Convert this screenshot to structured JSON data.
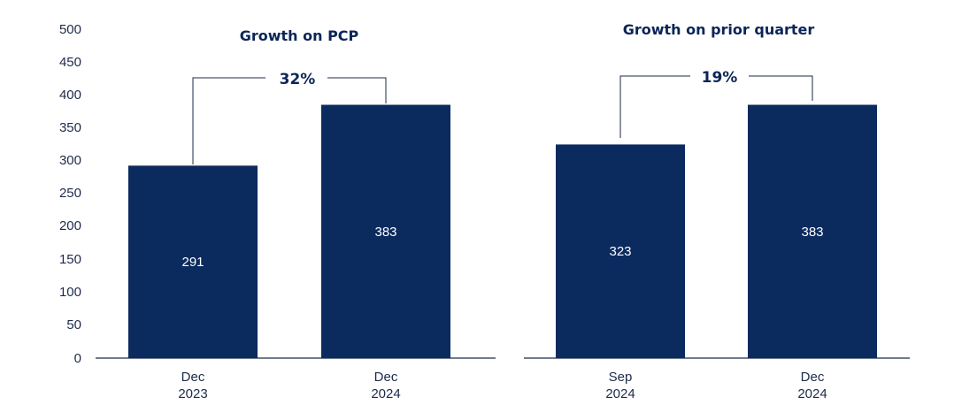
{
  "chart_data": {
    "type": "bar",
    "ylim": [
      0,
      500
    ],
    "yticks": [
      "500",
      "450",
      "400",
      "350",
      "300",
      "250",
      "200",
      "150",
      "100",
      "50",
      "0"
    ],
    "bar_color": "#0b2a5e",
    "panels": [
      {
        "title": "Growth on PCP",
        "growth_label": "32%",
        "categories": [
          {
            "line1": "Dec",
            "line2": "2023"
          },
          {
            "line1": "Dec",
            "line2": "2024"
          }
        ],
        "values": [
          291,
          383
        ],
        "value_labels": [
          "291",
          "383"
        ]
      },
      {
        "title": "Growth on prior quarter",
        "growth_label": "19%",
        "categories": [
          {
            "line1": "Sep",
            "line2": "2024"
          },
          {
            "line1": "Dec",
            "line2": "2024"
          }
        ],
        "values": [
          323,
          383
        ],
        "value_labels": [
          "323",
          "383"
        ]
      }
    ]
  }
}
